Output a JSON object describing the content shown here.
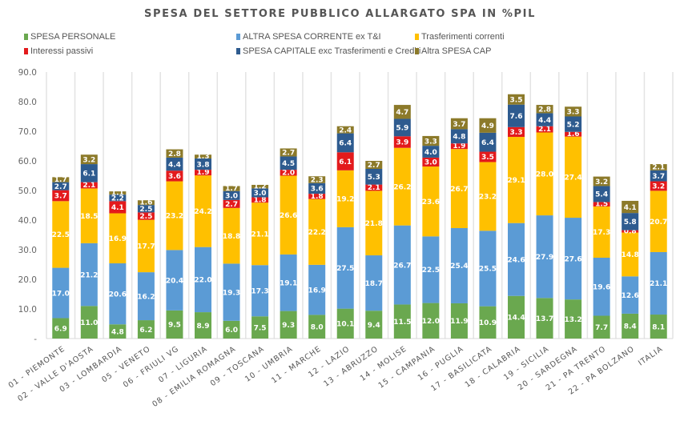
{
  "chart_data": {
    "type": "bar",
    "stacked": true,
    "title": "SPESA DEL SETTORE PUBBLICO ALLARGATO SPA IN %PIL",
    "xlabel": "",
    "ylabel": "",
    "ylim": [
      0,
      90
    ],
    "yticks": [
      "-",
      "10.0",
      "20.0",
      "30.0",
      "40.0",
      "50.0",
      "60.0",
      "70.0",
      "80.0",
      "90.0"
    ],
    "ytick_values": [
      0,
      10,
      20,
      30,
      40,
      50,
      60,
      70,
      80,
      90
    ],
    "grid": "vertical",
    "legend_position": "top",
    "categories": [
      "01 - PIEMONTE",
      "02 - VALLE D'AOSTA",
      "03 - LOMBARDIA",
      "05 - VENETO",
      "06 - FRIULI VG",
      "07 - LIGURIA",
      "08 - EMILIA ROMAGNA",
      "09 - TOSCANA",
      "10 - UMBRIA",
      "11 - MARCHE",
      "12 - LAZIO",
      "13 - ABRUZZO",
      "14 - MOLISE",
      "15 - CAMPANIA",
      "16 - PUGLIA",
      "17 - BASILICATA",
      "18 - CALABRIA",
      "19 - SICILIA",
      "20 - SARDEGNA",
      "21 - PA TRENTO",
      "22 - PA BOLZANO",
      "ITALIA"
    ],
    "series": [
      {
        "name": "SPESA PERSONALE",
        "color": "#6aa84f",
        "label_color": "#ffffff",
        "values": [
          6.9,
          11.0,
          4.8,
          6.2,
          9.5,
          8.9,
          6.0,
          7.5,
          9.3,
          8.0,
          10.1,
          9.4,
          11.5,
          12.0,
          11.9,
          10.9,
          14.4,
          13.7,
          13.2,
          7.7,
          8.4,
          8.1
        ]
      },
      {
        "name": "ALTRA SPESA CORRENTE ex T&I",
        "color": "#5b9bd5",
        "label_color": "#ffffff",
        "values": [
          17.0,
          21.2,
          20.6,
          16.2,
          20.4,
          22.0,
          19.3,
          17.3,
          19.1,
          16.9,
          27.5,
          18.7,
          26.7,
          22.5,
          25.4,
          25.5,
          24.6,
          27.9,
          27.6,
          19.6,
          12.6,
          21.1
        ]
      },
      {
        "name": "Trasferimenti correnti",
        "color": "#ffc000",
        "label_color": "#ffffff",
        "values": [
          22.5,
          18.5,
          16.9,
          17.7,
          23.2,
          24.2,
          18.8,
          21.1,
          26.6,
          22.2,
          19.2,
          21.8,
          26.2,
          23.6,
          26.7,
          23.2,
          29.1,
          28.0,
          27.4,
          17.3,
          14.8,
          20.7
        ]
      },
      {
        "name": "Interessi passivi",
        "color": "#e31a1c",
        "label_color": "#ffffff",
        "values": [
          3.7,
          2.1,
          4.1,
          2.5,
          3.6,
          1.9,
          2.7,
          1.8,
          2.0,
          1.8,
          6.1,
          2.1,
          3.9,
          3.0,
          1.9,
          3.5,
          3.3,
          2.1,
          1.6,
          1.5,
          0.8,
          3.2
        ]
      },
      {
        "name": "SPESA CAPITALE exc Trasferimenti e Crediti",
        "color": "#2e5b8f",
        "label_color": "#ffffff",
        "values": [
          2.7,
          6.1,
          2.2,
          2.5,
          4.4,
          3.8,
          3.0,
          3.0,
          4.5,
          3.6,
          6.4,
          5.3,
          5.9,
          4.0,
          4.8,
          6.4,
          7.6,
          4.4,
          5.2,
          5.4,
          5.8,
          3.7
        ]
      },
      {
        "name": "Altra SPESA CAP",
        "color": "#8c7a2a",
        "label_color": "#ffffff",
        "values": [
          1.7,
          3.2,
          1.1,
          1.6,
          2.8,
          1.3,
          1.7,
          1.2,
          2.7,
          2.3,
          2.4,
          2.7,
          4.7,
          3.3,
          3.7,
          4.9,
          3.5,
          2.8,
          3.3,
          3.2,
          4.1,
          2.1
        ]
      }
    ]
  }
}
